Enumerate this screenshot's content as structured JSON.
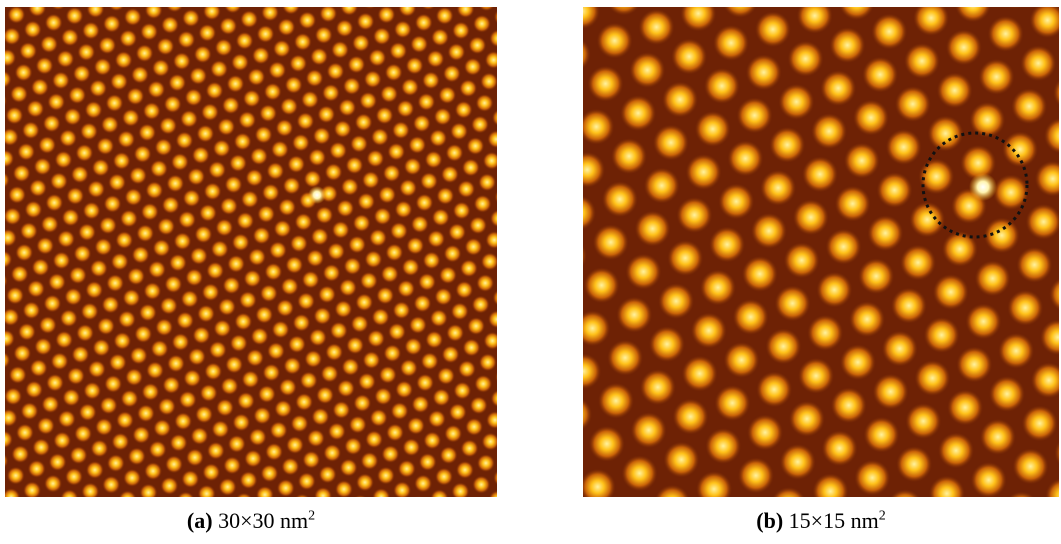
{
  "figures": [
    {
      "label": "(a)",
      "caption": "30×30 nm",
      "exponent": "2"
    },
    {
      "label": "(b)",
      "caption": "15×15 nm",
      "exponent": "2"
    }
  ]
}
